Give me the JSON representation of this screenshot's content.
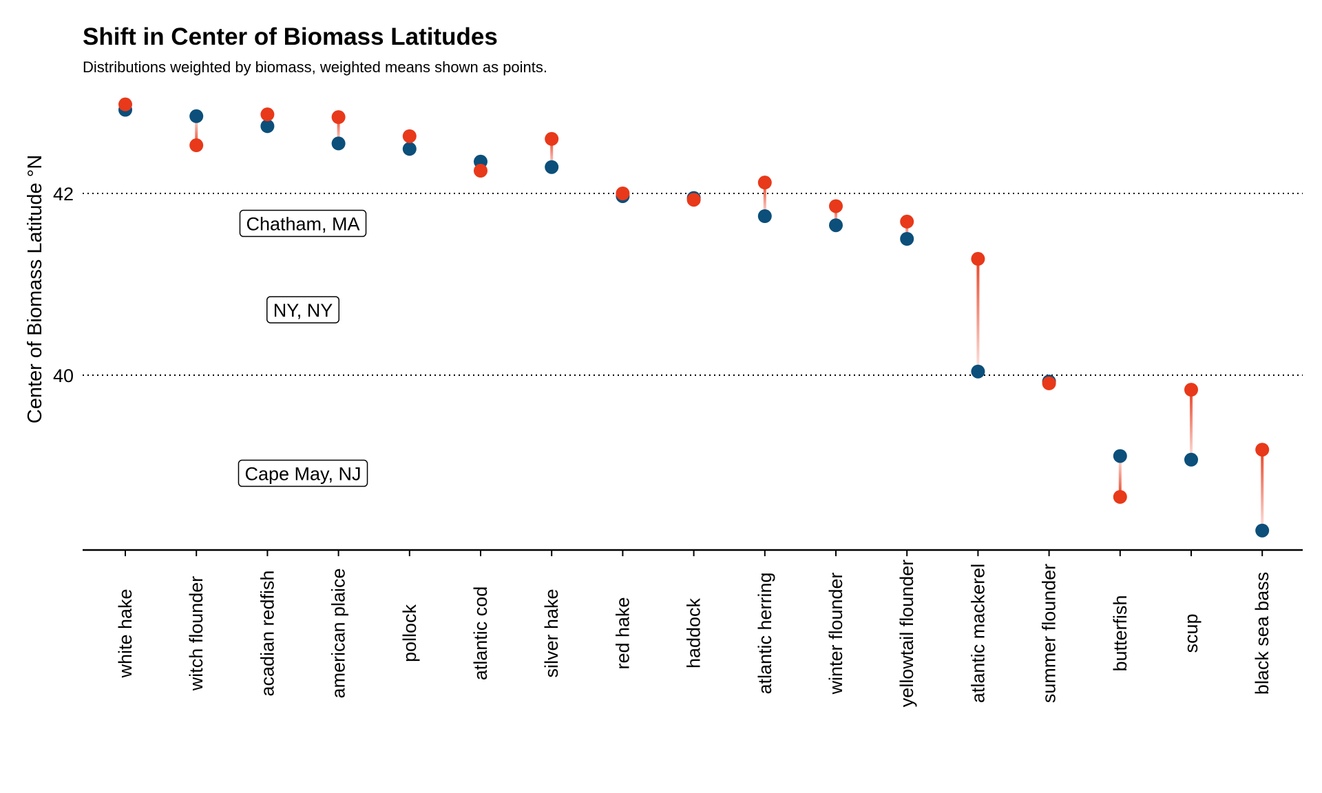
{
  "chart_data": {
    "type": "scatter",
    "title": "Shift in Center of Biomass Latitudes",
    "subtitle": "Distributions weighted by biomass, weighted means shown as points.",
    "ylabel": "Center of Biomass Latitude °N",
    "xlabel": "",
    "ylim": [
      38.1,
      43.2
    ],
    "yticks": [
      40,
      42
    ],
    "grid": "dotted horizontal lines at y ticks",
    "colors": {
      "blue": "#0b4f7a",
      "orange": "#e8391a"
    },
    "categories": [
      "white hake",
      "witch flounder",
      "acadian redfish",
      "american plaice",
      "pollock",
      "atlantic cod",
      "silver hake",
      "red hake",
      "haddock",
      "atlantic herring",
      "winter flounder",
      "yellowtail flounder",
      "atlantic mackerel",
      "summer flounder",
      "butterfish",
      "scup",
      "black sea bass"
    ],
    "series": [
      {
        "values": [
          42.92,
          42.85,
          42.74,
          42.55,
          42.49,
          42.35,
          42.29,
          41.97,
          41.95,
          41.75,
          41.65,
          41.5,
          40.04,
          39.93,
          39.11,
          39.07,
          38.29
        ],
        "color": "#0b4f7a"
      },
      {
        "values": [
          42.98,
          42.53,
          42.87,
          42.84,
          42.63,
          42.25,
          42.6,
          42.0,
          41.93,
          42.12,
          41.86,
          41.69,
          41.28,
          39.91,
          38.66,
          39.84,
          39.18
        ],
        "color": "#e8391a"
      }
    ],
    "annotations": [
      {
        "text": "Chatham, MA",
        "y": 41.67
      },
      {
        "text": "NY, NY",
        "y": 40.72
      },
      {
        "text": "Cape May, NJ",
        "y": 38.92
      }
    ]
  }
}
